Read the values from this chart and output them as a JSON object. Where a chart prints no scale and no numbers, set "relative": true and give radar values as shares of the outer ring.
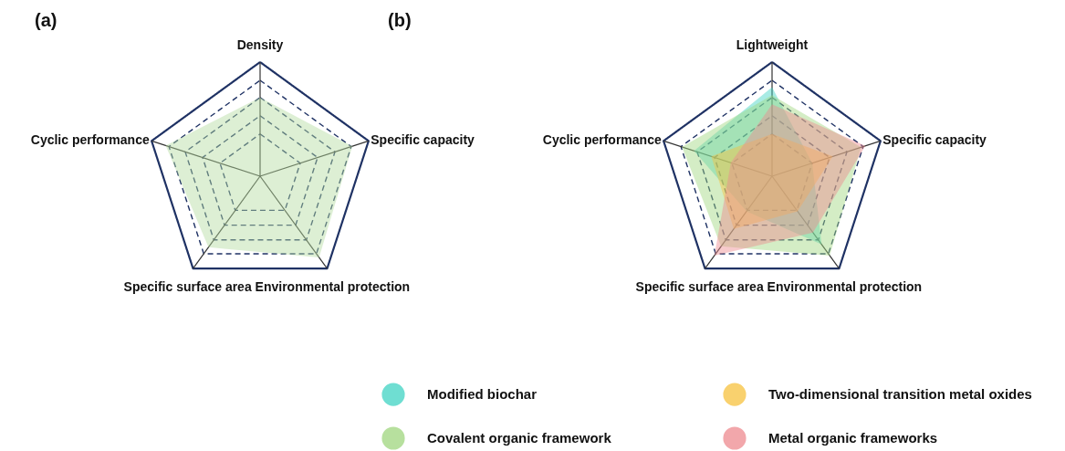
{
  "chart_data": [
    {
      "type": "radar",
      "title": "(a)",
      "categories": [
        "Density",
        "Specific capacity",
        "Environmental protection",
        "Specific surface area",
        "Cyclic performance"
      ],
      "relative": true,
      "grid": true,
      "legend": false,
      "series": [
        {
          "color": "#b3dba0",
          "values": [
            0.69,
            0.85,
            0.88,
            0.77,
            0.87
          ]
        }
      ]
    },
    {
      "type": "radar",
      "title": "(b)",
      "categories": [
        "Lightweight",
        "Specific capacity",
        "Environmental protection",
        "Specific surface area",
        "Cyclic performance"
      ],
      "relative": true,
      "grid": true,
      "legend": "bottom",
      "series": [
        {
          "name": "Modified biochar",
          "color": "#3fd3c3",
          "values": [
            0.78,
            0.37,
            0.74,
            0.38,
            0.72
          ]
        },
        {
          "name": "Covalent organic framework",
          "color": "#9fd67e",
          "values": [
            0.71,
            0.82,
            0.86,
            0.76,
            0.83
          ]
        },
        {
          "name": "Two-dimensional transition metal oxides",
          "color": "#f7c23e",
          "values": [
            0.37,
            0.56,
            0.38,
            0.57,
            0.56
          ]
        },
        {
          "name": "Metal organic frameworks",
          "color": "#ee8a8f",
          "values": [
            0.63,
            0.86,
            0.61,
            0.86,
            0.38
          ]
        }
      ]
    }
  ]
}
